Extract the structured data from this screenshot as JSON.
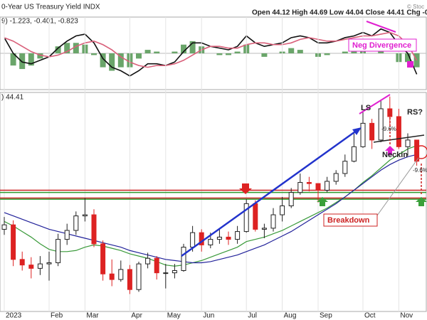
{
  "header": {
    "title": "0-Year US Treasury Yield INDX",
    "quote": "Open 44.12  High 44.69  Low 44.04  Close 44.41  Chg -0.",
    "credit": "© Stoc"
  },
  "chart_data": [
    {
      "type": "macd",
      "label": "9) -1.223, -0.401, -0.823",
      "ylim": [
        -2,
        2
      ],
      "annotations": [
        "Neg Divergence"
      ],
      "series": [
        {
          "name": "MACD",
          "color": "#111111",
          "values": [
            0.9,
            0.0,
            -0.5,
            -0.6,
            -0.4,
            -0.2,
            0.3,
            0.7,
            1.0,
            1.1,
            0.6,
            -0.3,
            -0.8,
            -1.0,
            -1.3,
            -1.0,
            -0.6,
            -0.6,
            -0.7,
            -0.5,
            0.1,
            0.6,
            0.6,
            0.4,
            0.3,
            0.2,
            0.4,
            1.0,
            0.6,
            0.4,
            0.5,
            0.6,
            0.9,
            1.0,
            0.9,
            0.6,
            0.6,
            0.7,
            0.9,
            1.0,
            1.2,
            1.0,
            1.4,
            1.2,
            0.5,
            0.0,
            -1.2
          ]
        },
        {
          "name": "Signal",
          "color": "#d9607a",
          "values": [
            0.9,
            0.7,
            0.4,
            0.1,
            -0.1,
            -0.2,
            -0.1,
            0.1,
            0.4,
            0.6,
            0.7,
            0.5,
            0.2,
            -0.2,
            -0.5,
            -0.7,
            -0.8,
            -0.7,
            -0.7,
            -0.6,
            -0.4,
            -0.1,
            0.2,
            0.4,
            0.4,
            0.3,
            0.3,
            0.5,
            0.6,
            0.6,
            0.5,
            0.5,
            0.6,
            0.8,
            0.9,
            0.8,
            0.7,
            0.7,
            0.8,
            0.9,
            1.0,
            1.0,
            1.1,
            1.2,
            1.0,
            0.5,
            -0.4
          ]
        },
        {
          "name": "Histogram",
          "color": "#6aa56a",
          "values": [
            0.0,
            -0.7,
            -0.9,
            -0.7,
            -0.3,
            0.0,
            0.4,
            0.6,
            0.6,
            0.5,
            -0.1,
            -0.8,
            -1.0,
            -0.8,
            -0.8,
            -0.3,
            0.2,
            0.1,
            0.0,
            0.1,
            0.5,
            0.7,
            0.4,
            0.0,
            -0.1,
            -0.1,
            0.1,
            0.5,
            0.0,
            -0.2,
            0.0,
            0.1,
            0.3,
            0.2,
            0.0,
            -0.2,
            -0.1,
            0.0,
            0.1,
            0.1,
            0.2,
            0.0,
            0.3,
            0.0,
            -0.5,
            -0.5,
            -0.8
          ]
        }
      ]
    },
    {
      "type": "candlestick",
      "label": ") 44.41",
      "ylim": [
        31,
        50.5
      ],
      "categories": [
        "2023",
        null,
        null,
        null,
        null,
        "Feb",
        null,
        null,
        null,
        "Mar",
        null,
        null,
        null,
        null,
        "Apr",
        null,
        null,
        null,
        "May",
        null,
        null,
        null,
        "Jun",
        null,
        null,
        null,
        null,
        "Jul",
        null,
        null,
        null,
        "Aug",
        null,
        null,
        null,
        "Sep",
        null,
        null,
        null,
        null,
        "Oct",
        null,
        null,
        null,
        "Nov",
        null,
        null
      ],
      "open": [
        38.3,
        38.7,
        35.6,
        35.1,
        34.8,
        35.2,
        35.3,
        37.4,
        38.2,
        39.5,
        39.6,
        37.0,
        34.3,
        33.8,
        34.7,
        32.9,
        35.2,
        35.7,
        34.4,
        34.4,
        34.6,
        36.7,
        38.0,
        36.9,
        37.4,
        37.6,
        37.4,
        38.1,
        40.6,
        38.3,
        38.4,
        39.6,
        40.4,
        41.6,
        42.5,
        42.4,
        41.8,
        42.6,
        43.3,
        44.4,
        45.7,
        47.8,
        46.3,
        49.1,
        48.4,
        45.7,
        46.3
      ],
      "high": [
        39.4,
        39.1,
        36.3,
        35.8,
        35.9,
        36.3,
        37.9,
        38.8,
        39.9,
        41.1,
        40.1,
        37.3,
        35.6,
        35.5,
        35.1,
        35.4,
        36.2,
        35.9,
        35.2,
        35.2,
        37.0,
        38.6,
        38.3,
        38.0,
        38.4,
        38.1,
        38.6,
        41.0,
        40.9,
        38.8,
        40.2,
        41.2,
        42.0,
        43.3,
        43.0,
        42.4,
        43.0,
        43.6,
        45.0,
        46.9,
        48.9,
        48.2,
        49.9,
        50.2,
        49.1,
        46.9,
        46.3
      ],
      "low": [
        37.8,
        35.0,
        34.6,
        33.9,
        34.2,
        33.7,
        35.0,
        36.9,
        37.8,
        39.0,
        36.7,
        33.7,
        33.2,
        33.6,
        32.5,
        32.7,
        34.8,
        33.8,
        33.0,
        33.9,
        34.5,
        36.3,
        36.3,
        36.6,
        37.0,
        36.9,
        37.0,
        38.0,
        38.1,
        37.5,
        38.1,
        39.0,
        40.2,
        41.4,
        41.7,
        40.7,
        41.6,
        42.3,
        43.0,
        44.3,
        45.6,
        45.5,
        46.1,
        47.6,
        45.5,
        44.9,
        44.0
      ],
      "close": [
        38.7,
        35.6,
        35.1,
        34.8,
        35.2,
        35.3,
        37.4,
        38.2,
        39.5,
        39.6,
        37.0,
        34.3,
        33.8,
        34.7,
        32.9,
        35.2,
        35.7,
        34.4,
        34.4,
        34.6,
        36.7,
        38.0,
        36.9,
        37.4,
        37.6,
        37.4,
        38.1,
        40.6,
        38.3,
        38.4,
        39.6,
        40.4,
        41.6,
        42.5,
        42.4,
        41.8,
        42.6,
        43.3,
        44.4,
        45.7,
        47.8,
        46.3,
        49.1,
        48.4,
        45.7,
        46.3,
        44.4
      ],
      "series": [
        {
          "name": "MA short",
          "color": "#3a9a3a",
          "values": [
            39.0,
            38.6,
            38.1,
            37.6,
            37.0,
            36.5,
            36.3,
            36.3,
            36.4,
            36.7,
            36.9,
            36.8,
            36.6,
            36.4,
            36.1,
            35.9,
            35.7,
            35.4,
            35.1,
            35.0,
            35.1,
            35.3,
            35.5,
            35.8,
            36.1,
            36.4,
            36.7,
            37.2,
            37.4,
            37.6,
            37.9,
            38.2,
            38.6,
            39.0,
            39.4,
            39.8,
            40.2,
            40.7,
            41.2,
            41.8,
            42.5,
            43.1,
            43.8,
            44.5,
            45.0,
            45.5,
            45.8
          ]
        },
        {
          "name": "MA long",
          "color": "#22229a",
          "values": [
            39.8,
            39.5,
            39.2,
            38.9,
            38.6,
            38.3,
            38.1,
            37.9,
            37.7,
            37.5,
            37.3,
            37.1,
            36.9,
            36.7,
            36.4,
            36.2,
            36.0,
            35.8,
            35.6,
            35.5,
            35.4,
            35.3,
            35.3,
            35.4,
            35.6,
            35.8,
            36.0,
            36.3,
            36.6,
            36.9,
            37.3,
            37.7,
            38.1,
            38.6,
            39.1,
            39.6,
            40.1,
            40.6,
            41.2,
            41.8,
            42.4,
            43.0,
            43.6,
            44.1,
            44.5,
            44.8,
            45.0
          ]
        }
      ],
      "levels": [
        {
          "value": 41.8,
          "color": "#cc2222"
        },
        {
          "value": 41.1,
          "color": "#cc2222"
        },
        {
          "value": 41.6,
          "color": "#2e9a2e"
        },
        {
          "value": 41.0,
          "color": "#2e9a2e"
        }
      ],
      "annotations": [
        "LS",
        "RS?",
        "Neckin",
        "-9.6%",
        "-9.6%",
        "Breakdown"
      ]
    }
  ]
}
